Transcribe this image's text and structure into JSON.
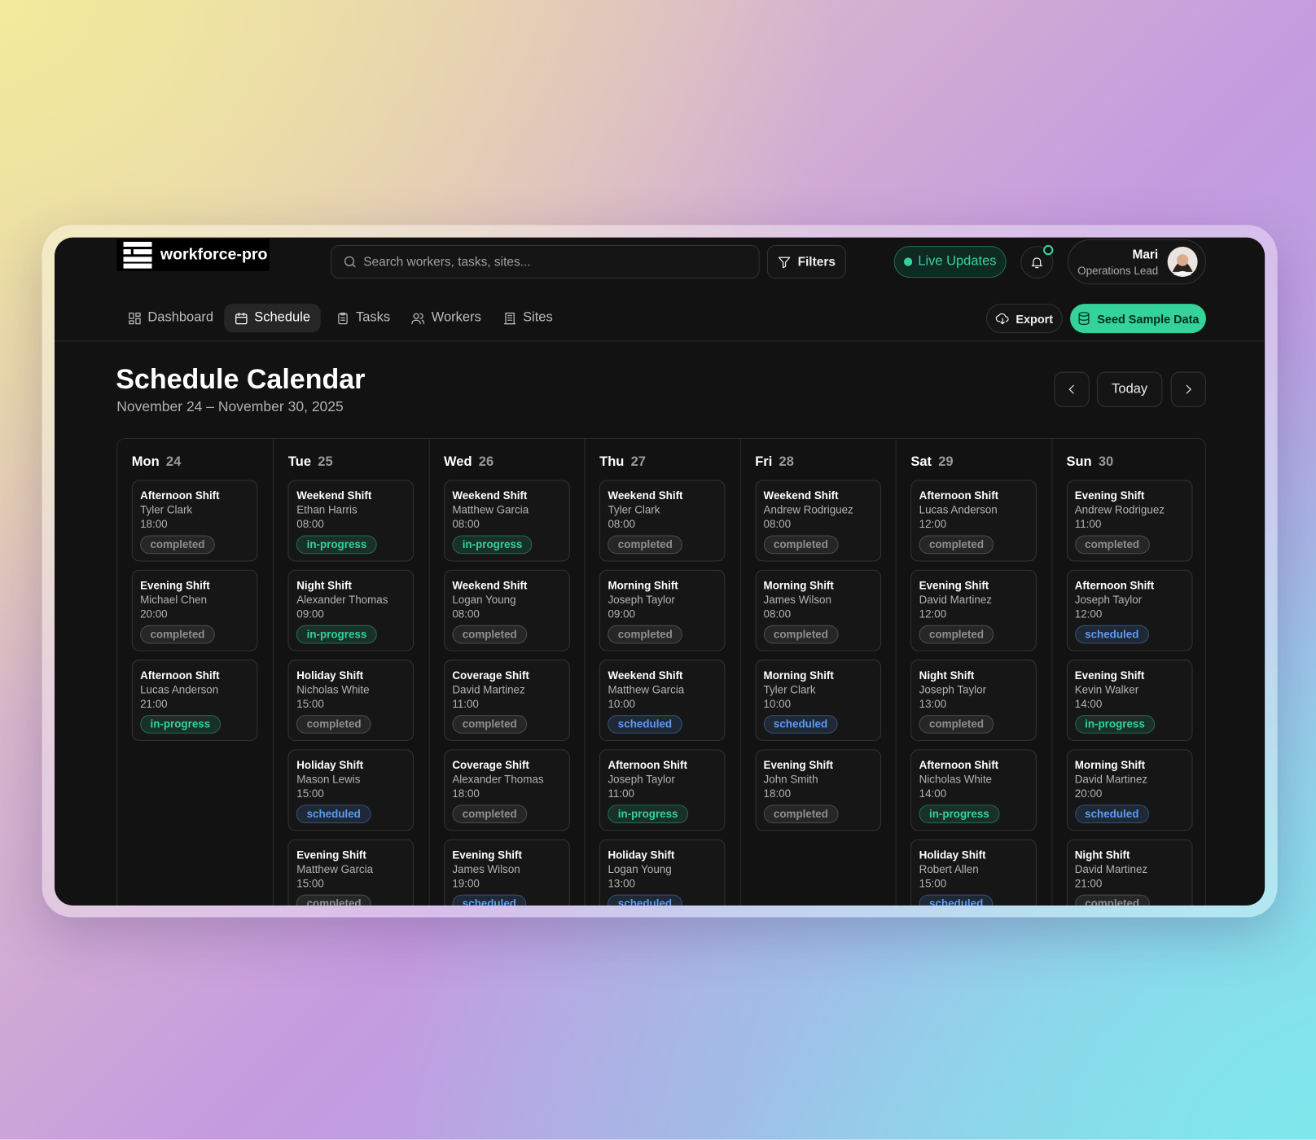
{
  "header": {
    "brand": "workforce-pro",
    "search_placeholder": "Search workers, tasks, sites...",
    "filters": "Filters",
    "live_updates": "Live Updates",
    "user": {
      "name": "Mari",
      "role": "Operations Lead"
    }
  },
  "nav": {
    "items": [
      "Dashboard",
      "Schedule",
      "Tasks",
      "Workers",
      "Sites"
    ]
  },
  "actions": {
    "export": "Export",
    "seed": "Seed Sample Data"
  },
  "page": {
    "title": "Schedule Calendar",
    "date_range": "November 24 – November 30, 2025",
    "today": "Today"
  },
  "status_colors": {
    "completed": "#8f8f8f",
    "in-progress": "#34d399",
    "scheduled": "#5b9cf6"
  },
  "calendar": {
    "days": [
      {
        "weekday": "Mon",
        "date": "24",
        "shifts": [
          {
            "name": "Afternoon Shift",
            "worker": "Tyler Clark",
            "time": "18:00",
            "status": "completed"
          },
          {
            "name": "Evening Shift",
            "worker": "Michael Chen",
            "time": "20:00",
            "status": "completed"
          },
          {
            "name": "Afternoon Shift",
            "worker": "Lucas Anderson",
            "time": "21:00",
            "status": "in-progress"
          }
        ]
      },
      {
        "weekday": "Tue",
        "date": "25",
        "shifts": [
          {
            "name": "Weekend Shift",
            "worker": "Ethan Harris",
            "time": "08:00",
            "status": "in-progress"
          },
          {
            "name": "Night Shift",
            "worker": "Alexander Thomas",
            "time": "09:00",
            "status": "in-progress"
          },
          {
            "name": "Holiday Shift",
            "worker": "Nicholas White",
            "time": "15:00",
            "status": "completed"
          },
          {
            "name": "Holiday Shift",
            "worker": "Mason Lewis",
            "time": "15:00",
            "status": "scheduled"
          },
          {
            "name": "Evening Shift",
            "worker": "Matthew Garcia",
            "time": "15:00",
            "status": "completed"
          }
        ]
      },
      {
        "weekday": "Wed",
        "date": "26",
        "shifts": [
          {
            "name": "Weekend Shift",
            "worker": "Matthew Garcia",
            "time": "08:00",
            "status": "in-progress"
          },
          {
            "name": "Weekend Shift",
            "worker": "Logan Young",
            "time": "08:00",
            "status": "completed"
          },
          {
            "name": "Coverage Shift",
            "worker": "David Martinez",
            "time": "11:00",
            "status": "completed"
          },
          {
            "name": "Coverage Shift",
            "worker": "Alexander Thomas",
            "time": "18:00",
            "status": "completed"
          },
          {
            "name": "Evening Shift",
            "worker": "James Wilson",
            "time": "19:00",
            "status": "scheduled"
          }
        ]
      },
      {
        "weekday": "Thu",
        "date": "27",
        "shifts": [
          {
            "name": "Weekend Shift",
            "worker": "Tyler Clark",
            "time": "08:00",
            "status": "completed"
          },
          {
            "name": "Morning Shift",
            "worker": "Joseph Taylor",
            "time": "09:00",
            "status": "completed"
          },
          {
            "name": "Weekend Shift",
            "worker": "Matthew Garcia",
            "time": "10:00",
            "status": "scheduled"
          },
          {
            "name": "Afternoon Shift",
            "worker": "Joseph Taylor",
            "time": "11:00",
            "status": "in-progress"
          },
          {
            "name": "Holiday Shift",
            "worker": "Logan Young",
            "time": "13:00",
            "status": "scheduled"
          }
        ]
      },
      {
        "weekday": "Fri",
        "date": "28",
        "shifts": [
          {
            "name": "Weekend Shift",
            "worker": "Andrew Rodriguez",
            "time": "08:00",
            "status": "completed"
          },
          {
            "name": "Morning Shift",
            "worker": "James Wilson",
            "time": "08:00",
            "status": "completed"
          },
          {
            "name": "Morning Shift",
            "worker": "Tyler Clark",
            "time": "10:00",
            "status": "scheduled"
          },
          {
            "name": "Evening Shift",
            "worker": "John Smith",
            "time": "18:00",
            "status": "completed"
          }
        ]
      },
      {
        "weekday": "Sat",
        "date": "29",
        "shifts": [
          {
            "name": "Afternoon Shift",
            "worker": "Lucas Anderson",
            "time": "12:00",
            "status": "completed"
          },
          {
            "name": "Evening Shift",
            "worker": "David Martinez",
            "time": "12:00",
            "status": "completed"
          },
          {
            "name": "Night Shift",
            "worker": "Joseph Taylor",
            "time": "13:00",
            "status": "completed"
          },
          {
            "name": "Afternoon Shift",
            "worker": "Nicholas White",
            "time": "14:00",
            "status": "in-progress"
          },
          {
            "name": "Holiday Shift",
            "worker": "Robert Allen",
            "time": "15:00",
            "status": "scheduled"
          }
        ]
      },
      {
        "weekday": "Sun",
        "date": "30",
        "shifts": [
          {
            "name": "Evening Shift",
            "worker": "Andrew Rodriguez",
            "time": "11:00",
            "status": "completed"
          },
          {
            "name": "Afternoon Shift",
            "worker": "Joseph Taylor",
            "time": "12:00",
            "status": "scheduled"
          },
          {
            "name": "Evening Shift",
            "worker": "Kevin Walker",
            "time": "14:00",
            "status": "in-progress"
          },
          {
            "name": "Morning Shift",
            "worker": "David Martinez",
            "time": "20:00",
            "status": "scheduled"
          },
          {
            "name": "Night Shift",
            "worker": "David Martinez",
            "time": "21:00",
            "status": "completed"
          }
        ]
      }
    ]
  }
}
